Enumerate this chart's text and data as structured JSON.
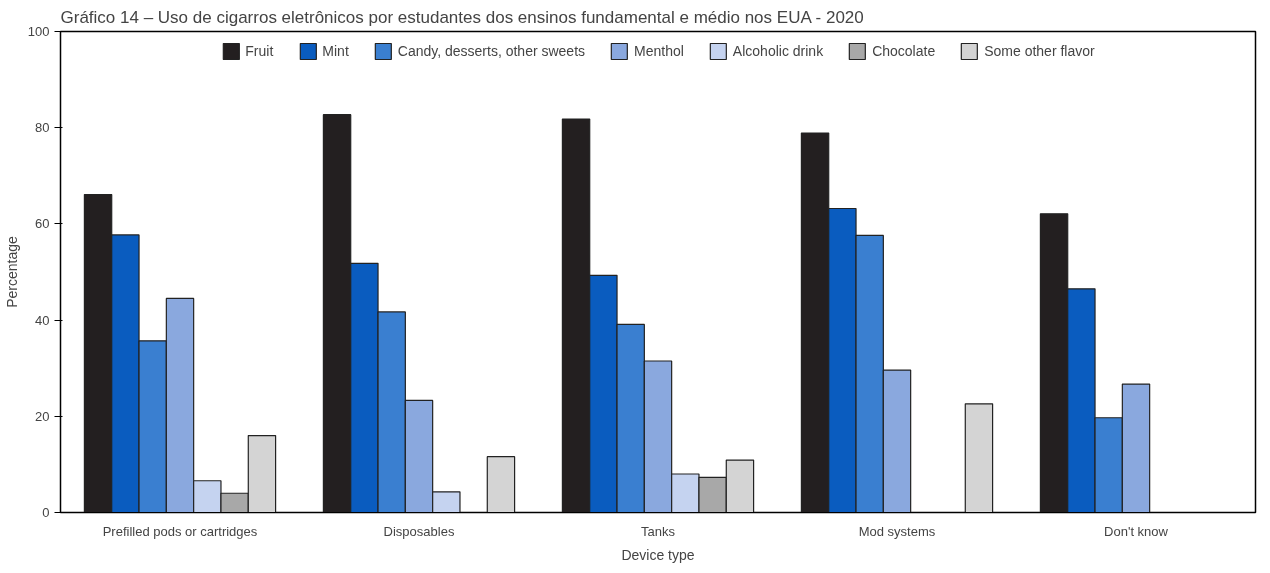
{
  "chart_data": {
    "type": "bar",
    "title": "Gráfico 14 – Uso de cigarros eletrônicos por estudantes dos ensinos fundamental e médio nos EUA - 2020",
    "xlabel": "Device type",
    "ylabel": "Percentage",
    "categories": [
      "Prefilled pods or cartridges",
      "Disposables",
      "Tanks",
      "Mod systems",
      "Don't know"
    ],
    "series": [
      {
        "name": "Fruit",
        "color": "#231f20",
        "values": [
          66.1,
          82.7,
          81.8,
          78.9,
          62.1
        ]
      },
      {
        "name": "Mint",
        "color": "#0a5cbf",
        "values": [
          57.7,
          51.8,
          49.3,
          63.2,
          46.5
        ]
      },
      {
        "name": "Candy, desserts, other sweets",
        "color": "#3a7fd0",
        "values": [
          35.7,
          41.7,
          39.1,
          57.6,
          19.7
        ]
      },
      {
        "name": "Menthol",
        "color": "#8aa8de",
        "values": [
          44.5,
          23.3,
          31.5,
          29.6,
          26.7
        ]
      },
      {
        "name": "Alcoholic drink",
        "color": "#c5d3f0",
        "values": [
          6.6,
          4.3,
          8.0,
          null,
          null
        ]
      },
      {
        "name": "Chocolate",
        "color": "#a8a8a8",
        "values": [
          4.0,
          null,
          7.3,
          null,
          null
        ]
      },
      {
        "name": "Some other flavor",
        "color": "#d4d4d4",
        "values": [
          16.0,
          11.6,
          10.9,
          22.6,
          null
        ]
      }
    ],
    "ylim": [
      0,
      100
    ],
    "yticks": [
      0,
      20,
      40,
      60,
      80,
      100
    ],
    "grid": false,
    "legend": "top"
  }
}
